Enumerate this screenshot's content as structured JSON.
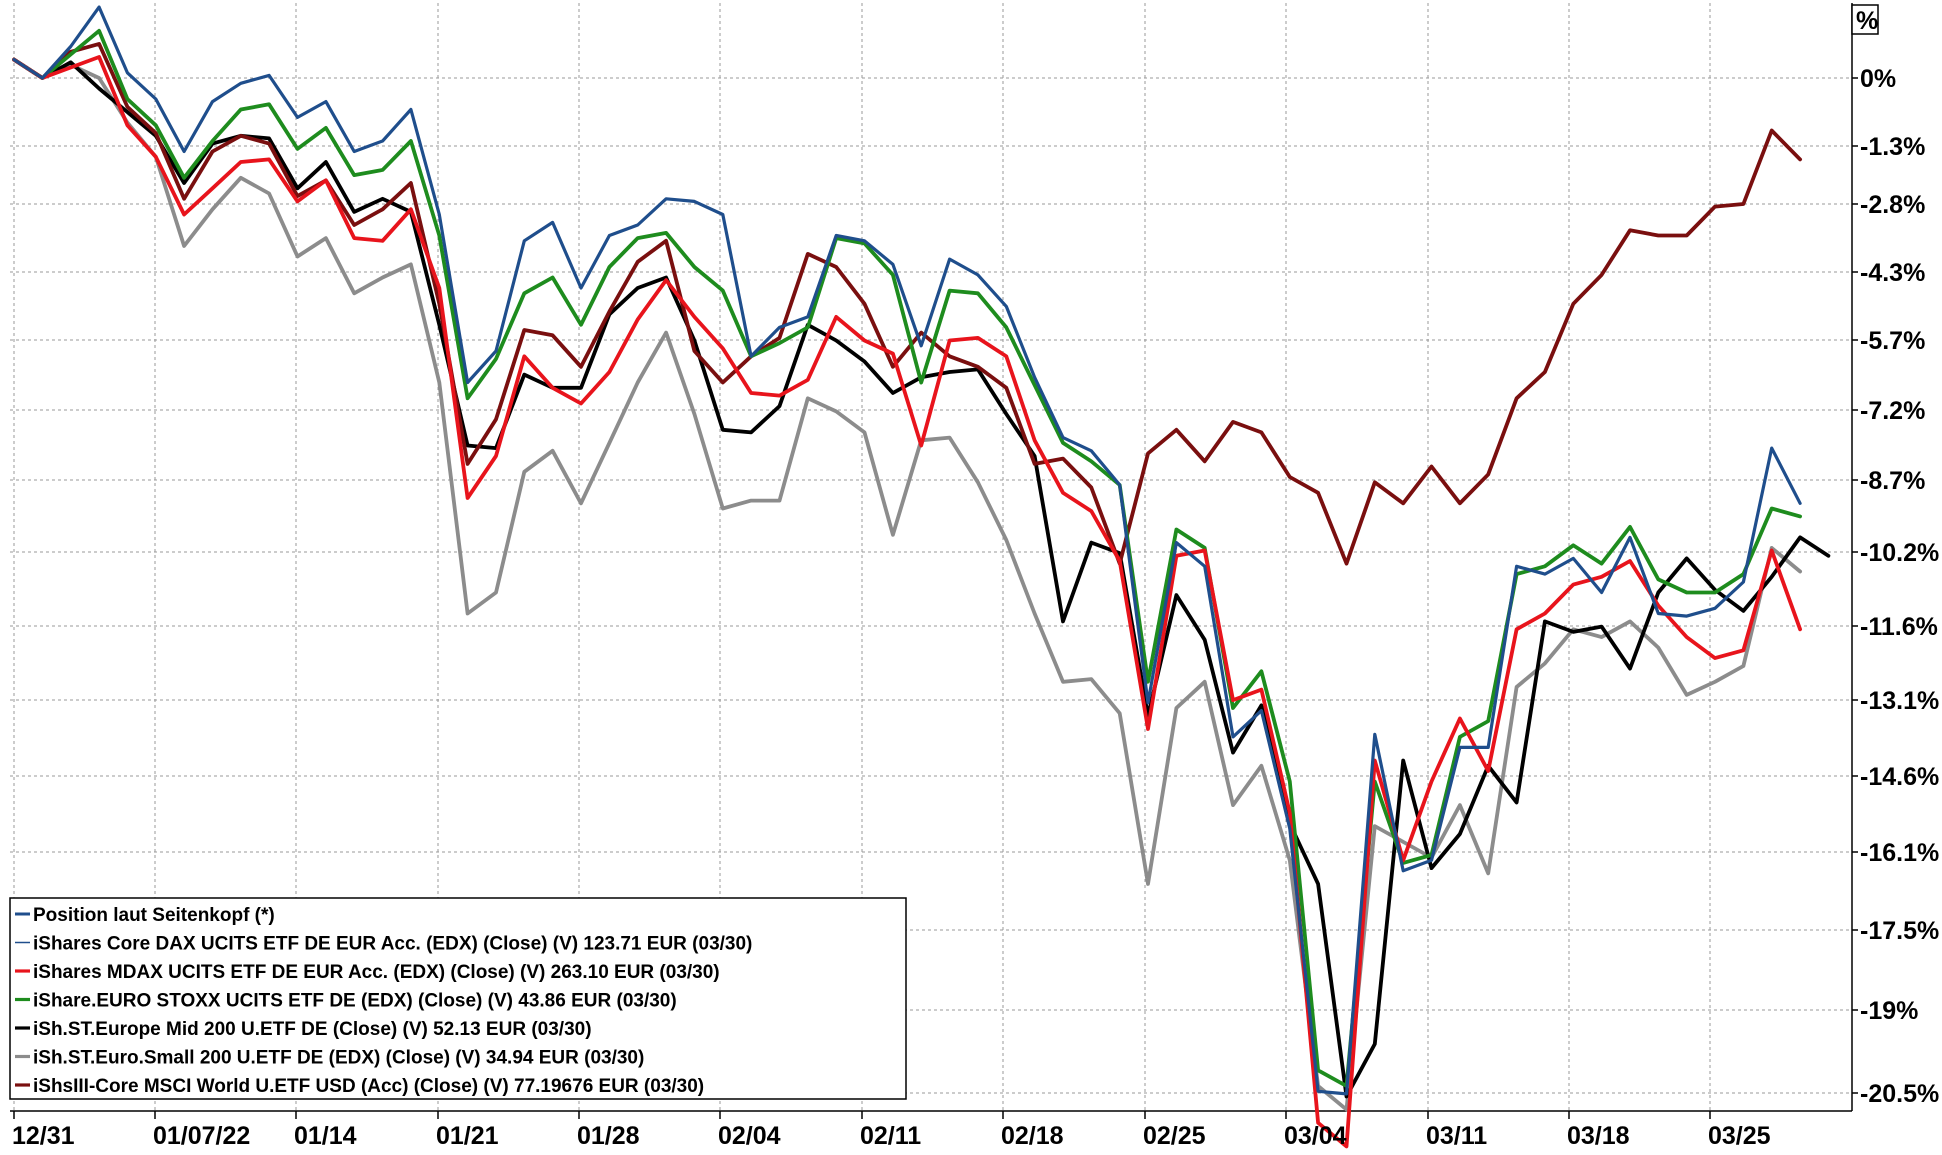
{
  "chart_data": {
    "type": "line",
    "unit_label": "%",
    "x_ticks": [
      "12/31",
      "01/07/22",
      "01/14",
      "01/21",
      "01/28",
      "02/04",
      "02/11",
      "02/18",
      "02/25",
      "03/04",
      "03/11",
      "03/18",
      "03/25"
    ],
    "y_ticks": [
      "0%",
      "-1.3%",
      "-2.8%",
      "-4.3%",
      "-5.7%",
      "-7.2%",
      "-8.7%",
      "-10.2%",
      "-11.6%",
      "-13.1%",
      "-14.6%",
      "-16.1%",
      "-17.5%",
      "-19%",
      "-20.5%"
    ],
    "ylim": [
      -20.5,
      0
    ],
    "grid": true,
    "legend_position": "bottom-left",
    "legend_title": "Position laut Seitenkopf (*)",
    "series": [
      {
        "name": "iShares Core DAX UCITS ETF DE EUR Acc. (EDX) (Close) (V) 123.71 EUR (03/30)",
        "color": "#1f4e8c",
        "values": [
          0.35,
          0.0,
          0.6,
          1.35,
          0.1,
          -0.4,
          -1.4,
          -0.45,
          -0.1,
          0.05,
          -0.75,
          -0.45,
          -1.4,
          -1.2,
          -0.6,
          -2.6,
          -5.8,
          -5.2,
          -3.1,
          -2.75,
          -4.0,
          -3.0,
          -2.8,
          -2.3,
          -2.35,
          -2.6,
          -5.3,
          -4.75,
          -4.55,
          -3.0,
          -3.1,
          -3.55,
          -5.1,
          -3.45,
          -3.75,
          -4.35,
          -5.7,
          -6.85,
          -7.1,
          -7.75,
          -11.9,
          -8.85,
          -9.3,
          -12.55,
          -12.05,
          -14.3,
          -19.3,
          -19.35,
          -12.5,
          -15.1,
          -14.9,
          -12.75,
          -12.75,
          -9.3,
          -9.45,
          -9.15,
          -9.8,
          -8.75,
          -10.2,
          -10.25,
          -10.1,
          -9.6,
          -7.05,
          -8.1
        ],
        "line_width": 3.2
      },
      {
        "name": "iShares MDAX UCITS ETF DE EUR Acc. (EDX) (Close) (V) 263.10 EUR (03/30)",
        "color": "#e8141c",
        "values": [
          0.35,
          0.0,
          0.2,
          0.4,
          -0.9,
          -1.5,
          -2.6,
          -2.1,
          -1.6,
          -1.55,
          -2.35,
          -1.95,
          -3.05,
          -3.1,
          -2.5,
          -4.0,
          -8.0,
          -7.2,
          -5.3,
          -5.9,
          -6.2,
          -5.6,
          -4.6,
          -3.85,
          -4.55,
          -5.15,
          -6.0,
          -6.05,
          -5.75,
          -4.55,
          -5.0,
          -5.25,
          -7.0,
          -5.0,
          -4.95,
          -5.3,
          -6.9,
          -7.9,
          -8.25,
          -9.2,
          -12.4,
          -9.1,
          -9.0,
          -11.85,
          -11.65,
          -14.0,
          -19.9,
          -20.35,
          -13.0,
          -14.9,
          -13.4,
          -12.2,
          -13.2,
          -10.5,
          -10.2,
          -9.65,
          -9.5,
          -9.2,
          -10.05,
          -10.65,
          -11.05,
          -10.9,
          -9.0,
          -10.5
        ],
        "line_width": 3.8
      },
      {
        "name": "iShare.EURO STOXX UCITS ETF DE (EDX) (Close) (V) 43.86 EUR (03/30)",
        "color": "#1e8c1e",
        "values": [
          0.35,
          0.0,
          0.45,
          0.9,
          -0.4,
          -0.9,
          -1.9,
          -1.2,
          -0.6,
          -0.5,
          -1.35,
          -0.95,
          -1.85,
          -1.75,
          -1.2,
          -3.0,
          -6.1,
          -5.35,
          -4.1,
          -3.8,
          -4.7,
          -3.6,
          -3.05,
          -2.95,
          -3.6,
          -4.05,
          -5.3,
          -5.05,
          -4.75,
          -3.05,
          -3.15,
          -3.75,
          -5.8,
          -4.05,
          -4.1,
          -4.75,
          -5.85,
          -6.95,
          -7.3,
          -7.75,
          -11.5,
          -8.6,
          -8.95,
          -12.0,
          -11.3,
          -13.4,
          -18.9,
          -19.2,
          -13.4,
          -14.95,
          -14.8,
          -12.55,
          -12.25,
          -9.45,
          -9.3,
          -8.9,
          -9.25,
          -8.55,
          -9.55,
          -9.8,
          -9.8,
          -9.45,
          -8.2,
          -8.35
        ],
        "line_width": 3.8
      },
      {
        "name": "iSh.ST.Europe Mid 200 U.ETF DE (Close) (V) 52.13 EUR (03/30)",
        "color": "#000000",
        "values": [
          0.35,
          0.0,
          0.3,
          -0.2,
          -0.65,
          -1.1,
          -2.0,
          -1.25,
          -1.1,
          -1.15,
          -2.1,
          -1.6,
          -2.55,
          -2.3,
          -2.55,
          -4.7,
          -7.0,
          -7.05,
          -5.65,
          -5.9,
          -5.9,
          -4.5,
          -4.0,
          -3.8,
          -5.0,
          -6.7,
          -6.75,
          -6.25,
          -4.7,
          -5.0,
          -5.4,
          -6.0,
          -5.7,
          -5.6,
          -5.55,
          -6.4,
          -7.2,
          -10.35,
          -8.85,
          -9.05,
          -12.15,
          -9.85,
          -10.7,
          -12.85,
          -11.95,
          -14.2,
          -15.35,
          -19.4,
          -18.4,
          -13.0,
          -15.05,
          -14.4,
          -13.1,
          -13.8,
          -10.35,
          -10.55,
          -10.45,
          -11.25,
          -9.8,
          -9.15,
          -9.75,
          -10.15,
          -9.5,
          -8.75,
          -9.1
        ],
        "line_width": 3.8
      },
      {
        "name": "iSh.ST.Euro.Small 200 U.ETF DE (EDX) (Close) (V) 34.94 EUR (03/30)",
        "color": "#8c8c8c",
        "values": [
          0.35,
          0.0,
          0.25,
          0.0,
          -0.85,
          -1.5,
          -3.2,
          -2.5,
          -1.9,
          -2.2,
          -3.4,
          -3.05,
          -4.1,
          -3.8,
          -3.55,
          -5.8,
          -10.2,
          -9.8,
          -7.5,
          -7.1,
          -8.1,
          -6.95,
          -5.8,
          -4.85,
          -6.4,
          -8.2,
          -8.05,
          -8.05,
          -6.1,
          -6.35,
          -6.75,
          -8.7,
          -6.9,
          -6.85,
          -7.7,
          -8.8,
          -10.2,
          -11.5,
          -11.45,
          -12.1,
          -15.35,
          -12.0,
          -11.5,
          -13.85,
          -13.1,
          -14.9,
          -19.2,
          -19.65,
          -14.25,
          -14.55,
          -14.85,
          -13.85,
          -15.15,
          -11.6,
          -11.15,
          -10.5,
          -10.65,
          -10.35,
          -10.85,
          -11.75,
          -11.5,
          -11.2,
          -8.95,
          -9.4
        ],
        "line_width": 3.8
      },
      {
        "name": "iShsIII-Core MSCI World U.ETF USD (Acc) (Close) (V) 77.19676 EUR (03/30)",
        "color": "#7a0f0f",
        "values": [
          0.35,
          0.0,
          0.5,
          0.65,
          -0.55,
          -1.05,
          -2.3,
          -1.4,
          -1.1,
          -1.25,
          -2.25,
          -1.95,
          -2.8,
          -2.5,
          -2.0,
          -4.3,
          -7.35,
          -6.5,
          -4.8,
          -4.9,
          -5.5,
          -4.45,
          -3.5,
          -3.1,
          -5.2,
          -5.8,
          -5.3,
          -4.95,
          -3.35,
          -3.6,
          -4.3,
          -5.5,
          -4.85,
          -5.3,
          -5.5,
          -5.9,
          -7.35,
          -7.25,
          -7.8,
          -9.25,
          -7.15,
          -6.7,
          -7.3,
          -6.55,
          -6.75,
          -7.6,
          -7.9,
          -9.25,
          -7.7,
          -8.1,
          -7.4,
          -8.1,
          -7.55,
          -6.1,
          -5.6,
          -4.3,
          -3.75,
          -2.9,
          -3.0,
          -3.0,
          -2.45,
          -2.4,
          -1.0,
          -1.55
        ],
        "line_width": 3.8
      }
    ]
  }
}
